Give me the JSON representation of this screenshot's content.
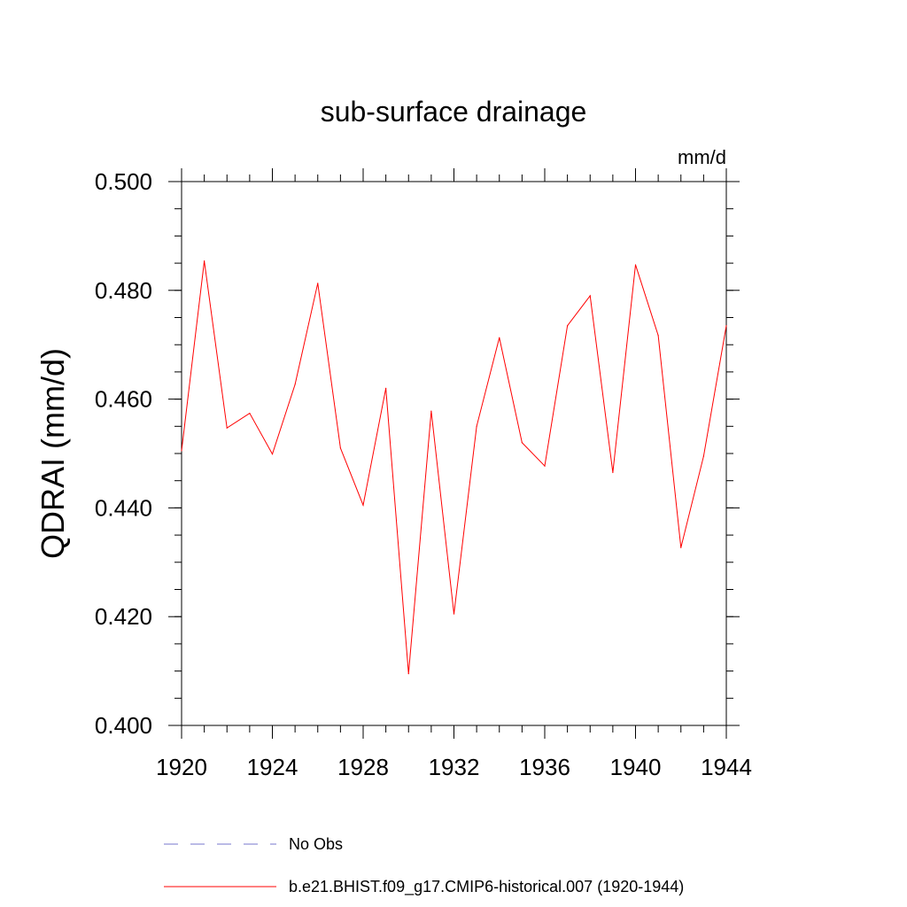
{
  "chart_data": {
    "type": "line",
    "title": "sub-surface drainage",
    "units": "mm/d",
    "ylabel": "QDRAI  (mm/d)",
    "xlabel": "",
    "xlim": [
      1920,
      1944
    ],
    "ylim": [
      0.4,
      0.5
    ],
    "x_ticks": [
      1920,
      1924,
      1928,
      1932,
      1936,
      1940,
      1944
    ],
    "x_tick_labels": [
      "1920",
      "1924",
      "1928",
      "1932",
      "1936",
      "1940",
      "1944"
    ],
    "x_minor_step": 1,
    "y_ticks": [
      0.4,
      0.42,
      0.44,
      0.46,
      0.48,
      0.5
    ],
    "y_tick_labels": [
      "0.400",
      "0.420",
      "0.440",
      "0.460",
      "0.480",
      "0.500"
    ],
    "y_minor_step": 0.005,
    "grid": false,
    "legend_placement": "bottom",
    "x": [
      1920,
      1921,
      1922,
      1923,
      1924,
      1925,
      1926,
      1927,
      1928,
      1929,
      1930,
      1931,
      1932,
      1933,
      1934,
      1935,
      1936,
      1937,
      1938,
      1939,
      1940,
      1941,
      1942,
      1943,
      1944
    ],
    "series": [
      {
        "name": "b.e21.BHIST.f09_g17.CMIP6-historical.007 (1920-1944)",
        "color": "#ff0000",
        "style": "solid",
        "values": [
          0.4505,
          0.4854,
          0.4547,
          0.4574,
          0.4499,
          0.4627,
          0.4813,
          0.451,
          0.4405,
          0.462,
          0.4095,
          0.4578,
          0.4205,
          0.455,
          0.4713,
          0.452,
          0.4477,
          0.4735,
          0.479,
          0.4465,
          0.4847,
          0.4717,
          0.4327,
          0.4495,
          0.4735
        ]
      }
    ],
    "legend": [
      {
        "label": "No Obs",
        "color": "#7777cc",
        "style": "dashed"
      },
      {
        "label": "b.e21.BHIST.f09_g17.CMIP6-historical.007 (1920-1944)",
        "color": "#ff0000",
        "style": "solid"
      }
    ]
  }
}
